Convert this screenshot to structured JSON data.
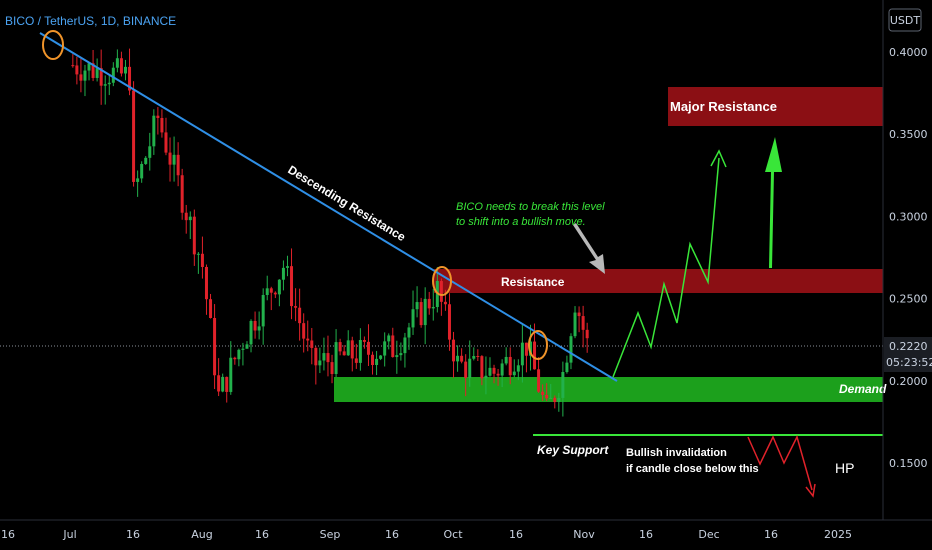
{
  "header": {
    "symbol": "BICO / TetherUS, 1D, BINANCE"
  },
  "price_axis": {
    "currency": "USDT",
    "ticks": [
      "0.4000",
      "0.3500",
      "0.3000",
      "0.2500",
      "0.2000",
      "0.1500"
    ],
    "current_price": "0.2220",
    "countdown": "05:23:52"
  },
  "time_axis": {
    "ticks": [
      "16",
      "Jul",
      "16",
      "Aug",
      "16",
      "Sep",
      "16",
      "Oct",
      "16",
      "Nov",
      "16",
      "Dec",
      "16",
      "2025"
    ]
  },
  "annotations": {
    "descending_resistance": "Descending Resistance",
    "note_line1": "BICO needs to break this level",
    "note_line2": "to shift into a bullish move.",
    "resistance": "Resistance",
    "major_resistance": "Major Resistance",
    "demand": "Demand",
    "key_support": "Key Support",
    "invalidation_line1": "Bullish invalidation",
    "invalidation_line2": "if candle close below this",
    "hp": "HP"
  },
  "colors": {
    "up": "#22b14c",
    "down": "#e0222a",
    "trendline": "#2f8fe6",
    "resistance_zone": "#8b0f14",
    "demand_zone": "#1ca01c",
    "projection": "#39e639",
    "touch_circle": "#f0942a"
  },
  "chart_data": {
    "type": "candlestick",
    "title": "BICO / TetherUS, 1D, BINANCE",
    "y_unit": "USDT",
    "ylim": [
      0.13,
      0.43
    ],
    "price_ticks": [
      0.4,
      0.35,
      0.3,
      0.25,
      0.2,
      0.15
    ],
    "last_price": 0.222,
    "x_ticks": [
      "16",
      "Jul",
      "16",
      "Aug",
      "16",
      "Sep",
      "16",
      "Oct",
      "16",
      "Nov",
      "16",
      "Dec",
      "16",
      "2025"
    ],
    "close_path_approx": [
      {
        "date": "Jun 16",
        "close": 0.392
      },
      {
        "date": "Jun 30",
        "close": 0.385
      },
      {
        "date": "Jul 8",
        "close": 0.34
      },
      {
        "date": "Jul 13",
        "close": 0.29
      },
      {
        "date": "Jul 22",
        "close": 0.36
      },
      {
        "date": "Jul 27",
        "close": 0.32
      },
      {
        "date": "Aug 2",
        "close": 0.27
      },
      {
        "date": "Aug 6",
        "close": 0.19
      },
      {
        "date": "Aug 12",
        "close": 0.225
      },
      {
        "date": "Aug 22",
        "close": 0.27
      },
      {
        "date": "Aug 29",
        "close": 0.21
      },
      {
        "date": "Sep 6",
        "close": 0.215
      },
      {
        "date": "Sep 18",
        "close": 0.22
      },
      {
        "date": "Sep 29",
        "close": 0.255
      },
      {
        "date": "Oct 4",
        "close": 0.21
      },
      {
        "date": "Oct 13",
        "close": 0.205
      },
      {
        "date": "Oct 21",
        "close": 0.222
      },
      {
        "date": "Oct 26",
        "close": 0.18
      },
      {
        "date": "Oct 30",
        "close": 0.205
      },
      {
        "date": "Nov 2",
        "close": 0.25
      },
      {
        "date": "Nov 5",
        "close": 0.222
      }
    ],
    "levels": {
      "major_resistance": [
        0.355,
        0.375
      ],
      "resistance": [
        0.253,
        0.267
      ],
      "demand": [
        0.188,
        0.2
      ],
      "key_support": 0.168
    },
    "trendline": {
      "label": "Descending Resistance",
      "from": {
        "date": "Jun 30",
        "price": 0.41
      },
      "to": {
        "date": "Nov 10",
        "price": 0.2
      }
    },
    "projection": {
      "target_zone": "Major Resistance"
    },
    "grid": false
  }
}
